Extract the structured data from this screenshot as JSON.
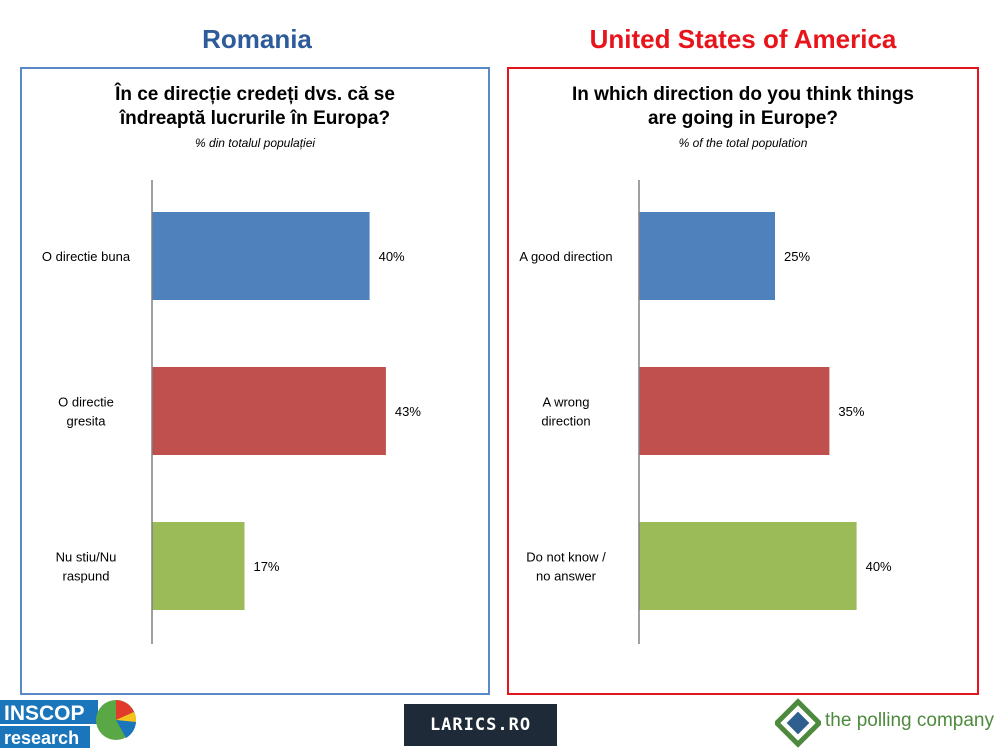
{
  "left_title": "Romania",
  "right_title": "United States of America",
  "chart_data": [
    {
      "type": "bar",
      "orientation": "horizontal",
      "title_lines": [
        "În ce direcție credeți dvs. că se",
        "îndreaptă lucrurile în Europa?"
      ],
      "subtitle": "% din totalul populației",
      "categories": [
        [
          "O directie buna"
        ],
        [
          "O directie",
          "gresita"
        ],
        [
          "Nu stiu/Nu",
          "raspund"
        ]
      ],
      "values": [
        40,
        43,
        17
      ],
      "labels": [
        "40%",
        "43%",
        "17%"
      ],
      "colors": [
        "#4f81bd",
        "#c0504d",
        "#9bbb59"
      ],
      "xlim": [
        0,
        50
      ]
    },
    {
      "type": "bar",
      "orientation": "horizontal",
      "title_lines": [
        "In which direction do you think things",
        "are going in Europe?"
      ],
      "subtitle": "% of the total population",
      "categories": [
        [
          "A good direction"
        ],
        [
          "A wrong",
          "direction"
        ],
        [
          "Do not know /",
          "no answer"
        ]
      ],
      "values": [
        25,
        35,
        40
      ],
      "labels": [
        "25%",
        "35%",
        "40%"
      ],
      "colors": [
        "#4f81bd",
        "#c0504d",
        "#9bbb59"
      ],
      "xlim": [
        0,
        50
      ]
    }
  ],
  "logos": {
    "inscop": "INSCOP research",
    "larics": "LARICS.RO",
    "polling": "the polling company"
  }
}
